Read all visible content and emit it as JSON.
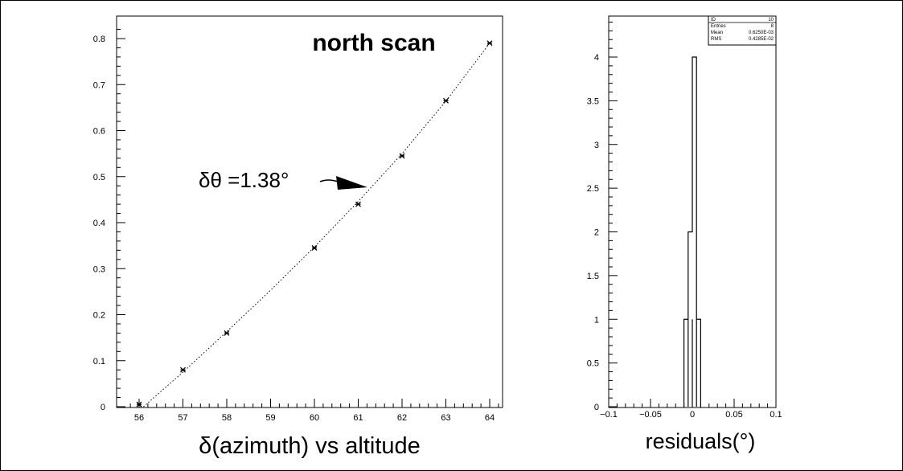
{
  "charts": [
    {
      "chart_data": {
        "type": "scatter",
        "title": "north scan",
        "xlabel": "δ(azimuth) vs altitude",
        "ylabel": "",
        "xlim": [
          55.6,
          64.3
        ],
        "ylim": [
          0,
          0.84
        ],
        "x_ticks": [
          "56",
          "57",
          "58",
          "59",
          "60",
          "61",
          "62",
          "63",
          "64"
        ],
        "y_ticks": [
          "0",
          "0.1",
          "0.2",
          "0.3",
          "0.4",
          "0.5",
          "0.6",
          "0.7",
          "0.8"
        ],
        "points": [
          {
            "x": 56,
            "y": 0.005
          },
          {
            "x": 57,
            "y": 0.08
          },
          {
            "x": 58,
            "y": 0.16
          },
          {
            "x": 60,
            "y": 0.345
          },
          {
            "x": 61,
            "y": 0.44
          },
          {
            "x": 62,
            "y": 0.545
          },
          {
            "x": 63,
            "y": 0.665
          },
          {
            "x": 64,
            "y": 0.79
          }
        ],
        "fit_curve": [
          {
            "x": 56.1,
            "y": 0.0
          },
          {
            "x": 57,
            "y": 0.075
          },
          {
            "x": 58,
            "y": 0.163
          },
          {
            "x": 59,
            "y": 0.253
          },
          {
            "x": 60,
            "y": 0.347
          },
          {
            "x": 61,
            "y": 0.446
          },
          {
            "x": 62,
            "y": 0.55
          },
          {
            "x": 63,
            "y": 0.664
          },
          {
            "x": 64,
            "y": 0.79
          }
        ],
        "annotation": {
          "text": "δθ =1.38°",
          "points_to": {
            "x": 61.3,
            "y": 0.49
          }
        },
        "grid": false
      }
    },
    {
      "chart_data": {
        "type": "bar",
        "subtype": "histogram",
        "xlabel": "residuals(°)",
        "ylabel": "",
        "xlim": [
          -0.1,
          0.1
        ],
        "ylim": [
          0,
          4.5
        ],
        "x_ticks": [
          "−0.1",
          "−0.05",
          "0",
          "0.05",
          "0.1"
        ],
        "x_tick_values": [
          -0.1,
          -0.05,
          0,
          0.05,
          0.1
        ],
        "y_ticks": [
          "0",
          "0.5",
          "1",
          "1.5",
          "2",
          "2.5",
          "3",
          "3.5",
          "4"
        ],
        "bins": [
          {
            "x0": -0.01,
            "x1": -0.005,
            "count": 1
          },
          {
            "x0": -0.005,
            "x1": 0.0,
            "count": 2
          },
          {
            "x0": 0.0,
            "x1": 0.005,
            "count": 4
          },
          {
            "x0": 0.005,
            "x1": 0.01,
            "count": 1
          }
        ],
        "stats_box": {
          "rows": [
            {
              "label": "ID",
              "value": "10"
            },
            {
              "label": "Entries",
              "value": "8"
            },
            {
              "label": "Mean",
              "value": "0.6250E-03"
            },
            {
              "label": "RMS",
              "value": "0.4285E-02"
            }
          ]
        },
        "grid": false
      }
    }
  ]
}
